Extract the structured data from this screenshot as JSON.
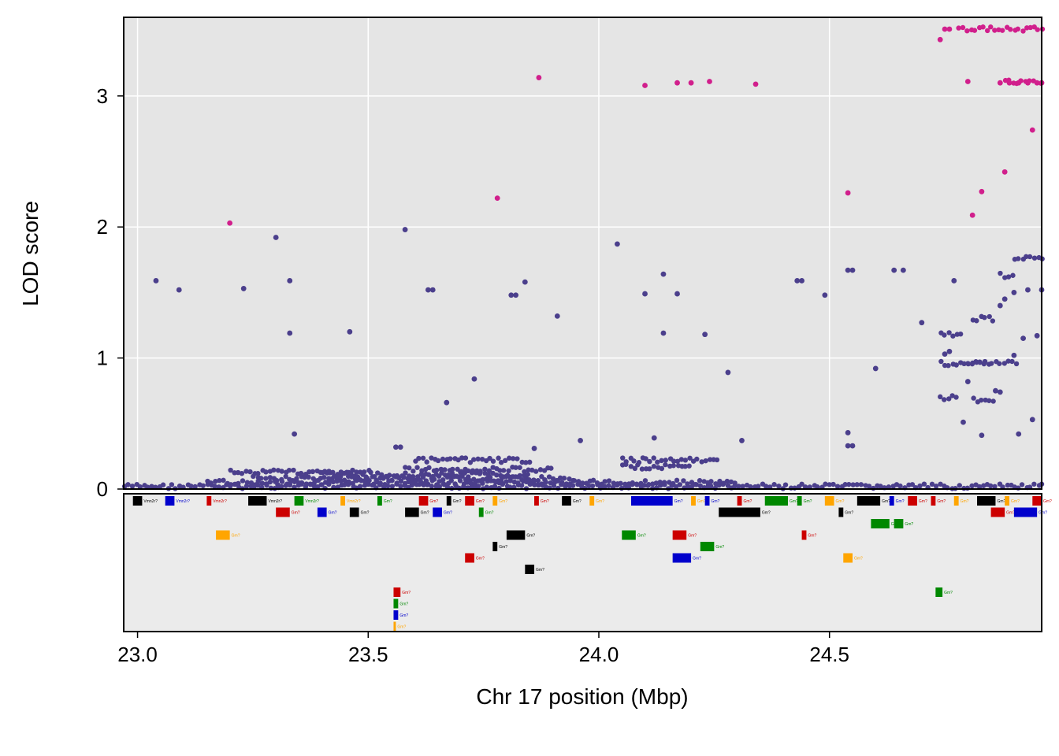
{
  "chart_data": {
    "type": "scatter",
    "title": "",
    "xlabel": "Chr 17 position (Mbp)",
    "ylabel": "LOD score",
    "xlim": [
      22.97,
      24.96
    ],
    "ylim": [
      0,
      3.6
    ],
    "x_ticks": [
      {
        "value": 23.0,
        "label": "23.0"
      },
      {
        "value": 23.5,
        "label": "23.5"
      },
      {
        "value": 24.0,
        "label": "24.0"
      },
      {
        "value": 24.5,
        "label": "24.5"
      }
    ],
    "y_ticks": [
      {
        "value": 0,
        "label": "0"
      },
      {
        "value": 1,
        "label": "1"
      },
      {
        "value": 2,
        "label": "2"
      },
      {
        "value": 3,
        "label": "3"
      }
    ],
    "grid": true,
    "background": "#e5e5e5",
    "gene_track": true,
    "series": [
      {
        "color": "#4b3f8c",
        "points": [
          [
            23.04,
            1.59
          ],
          [
            23.09,
            1.52
          ],
          [
            23.23,
            1.53
          ],
          [
            23.3,
            1.92
          ],
          [
            23.33,
            1.59
          ],
          [
            23.33,
            1.19
          ],
          [
            23.34,
            0.42
          ],
          [
            23.46,
            1.2
          ],
          [
            23.58,
            1.98
          ],
          [
            23.63,
            1.52
          ],
          [
            23.64,
            1.52
          ],
          [
            23.67,
            0.66
          ],
          [
            23.73,
            0.84
          ],
          [
            23.81,
            1.48
          ],
          [
            23.82,
            1.48
          ],
          [
            23.84,
            1.58
          ],
          [
            23.91,
            1.32
          ],
          [
            24.04,
            1.87
          ],
          [
            24.1,
            1.49
          ],
          [
            24.14,
            1.64
          ],
          [
            24.14,
            1.19
          ],
          [
            24.17,
            1.49
          ],
          [
            24.23,
            1.18
          ],
          [
            24.28,
            0.89
          ],
          [
            24.31,
            0.37
          ],
          [
            24.43,
            1.59
          ],
          [
            24.44,
            1.59
          ],
          [
            24.49,
            1.48
          ],
          [
            24.54,
            1.67
          ],
          [
            24.55,
            1.67
          ],
          [
            24.6,
            0.92
          ],
          [
            24.64,
            1.67
          ],
          [
            24.66,
            1.67
          ],
          [
            24.7,
            1.27
          ],
          [
            24.77,
            1.59
          ],
          [
            24.79,
            0.51
          ],
          [
            24.83,
            0.41
          ],
          [
            24.91,
            0.42
          ],
          [
            24.92,
            1.15
          ],
          [
            24.94,
            0.53
          ],
          [
            24.95,
            1.17
          ],
          [
            24.96,
            1.52
          ],
          [
            24.54,
            0.43
          ],
          [
            24.54,
            0.33
          ],
          [
            24.55,
            0.33
          ],
          [
            23.96,
            0.37
          ],
          [
            24.12,
            0.39
          ],
          [
            23.56,
            0.32
          ],
          [
            23.57,
            0.32
          ],
          [
            23.86,
            0.31
          ],
          [
            24.87,
            1.4
          ],
          [
            24.88,
            1.45
          ],
          [
            24.9,
            1.5
          ],
          [
            24.93,
            1.52
          ],
          [
            24.75,
            1.03
          ],
          [
            24.76,
            1.05
          ],
          [
            24.8,
            0.82
          ],
          [
            24.86,
            0.75
          ],
          [
            24.87,
            0.74
          ],
          [
            24.9,
            1.02
          ]
        ],
        "bands": [
          {
            "x_start": 22.97,
            "x_end": 24.96,
            "y": 0.02
          },
          {
            "x_start": 23.15,
            "x_end": 24.3,
            "y": 0.05
          },
          {
            "x_start": 23.25,
            "x_end": 23.95,
            "y": 0.08
          },
          {
            "x_start": 23.4,
            "x_end": 23.85,
            "y": 0.11
          },
          {
            "x_start": 23.58,
            "x_end": 23.9,
            "y": 0.15
          },
          {
            "x_start": 23.6,
            "x_end": 23.85,
            "y": 0.22
          },
          {
            "x_start": 24.05,
            "x_end": 24.26,
            "y": 0.22
          },
          {
            "x_start": 24.05,
            "x_end": 24.2,
            "y": 0.17
          },
          {
            "x_start": 23.2,
            "x_end": 23.5,
            "y": 0.13
          },
          {
            "x_start": 24.74,
            "x_end": 24.91,
            "y": 0.96
          },
          {
            "x_start": 24.74,
            "x_end": 24.79,
            "y": 1.18
          },
          {
            "x_start": 24.74,
            "x_end": 24.78,
            "y": 0.7
          },
          {
            "x_start": 24.8,
            "x_end": 24.84,
            "y": 0.96
          },
          {
            "x_start": 24.81,
            "x_end": 24.86,
            "y": 1.3
          },
          {
            "x_start": 24.87,
            "x_end": 24.9,
            "y": 1.63
          },
          {
            "x_start": 24.9,
            "x_end": 24.96,
            "y": 1.77
          },
          {
            "x_start": 24.81,
            "x_end": 24.86,
            "y": 0.68
          }
        ]
      },
      {
        "color": "#d11f8c",
        "points": [
          [
            23.2,
            2.03
          ],
          [
            23.78,
            2.22
          ],
          [
            23.87,
            3.14
          ],
          [
            24.1,
            3.08
          ],
          [
            24.17,
            3.1
          ],
          [
            24.2,
            3.1
          ],
          [
            24.24,
            3.11
          ],
          [
            24.34,
            3.09
          ],
          [
            24.54,
            2.26
          ],
          [
            24.74,
            3.43
          ],
          [
            24.75,
            3.51
          ],
          [
            24.76,
            3.51
          ],
          [
            24.8,
            3.11
          ],
          [
            24.81,
            2.09
          ],
          [
            24.83,
            2.27
          ],
          [
            24.88,
            2.42
          ],
          [
            24.94,
            2.74
          ],
          [
            24.87,
            3.1
          ],
          [
            24.89,
            3.1
          ],
          [
            24.91,
            3.1
          ],
          [
            24.93,
            3.1
          ],
          [
            24.95,
            3.1
          ],
          [
            24.96,
            3.1
          ]
        ],
        "bands": [
          {
            "x_start": 24.78,
            "x_end": 24.96,
            "y": 3.51
          },
          {
            "x_start": 24.88,
            "x_end": 24.96,
            "y": 3.11
          }
        ]
      }
    ],
    "genes": [
      {
        "start": 22.99,
        "end": 23.01,
        "row": 0,
        "color": "#000000",
        "label": "Vmn2r?"
      },
      {
        "start": 23.06,
        "end": 23.08,
        "row": 0,
        "color": "#0000cc",
        "label": "Vmn2r?"
      },
      {
        "start": 23.15,
        "end": 23.16,
        "row": 0,
        "color": "#cc0000",
        "label": "Vmn2r?"
      },
      {
        "start": 23.24,
        "end": 23.28,
        "row": 0,
        "color": "#000000",
        "label": "Vmn2r?"
      },
      {
        "start": 23.34,
        "end": 23.36,
        "row": 0,
        "color": "#008800",
        "label": "Vmn2r?"
      },
      {
        "start": 23.44,
        "end": 23.45,
        "row": 0,
        "color": "#ffa500",
        "label": "Vmn2r?"
      },
      {
        "start": 23.52,
        "end": 23.53,
        "row": 0,
        "color": "#008800",
        "label": "Gm?"
      },
      {
        "start": 23.61,
        "end": 23.63,
        "row": 0,
        "color": "#cc0000",
        "label": "Gm?"
      },
      {
        "start": 23.67,
        "end": 23.68,
        "row": 0,
        "color": "#000000",
        "label": "Gm?"
      },
      {
        "start": 23.71,
        "end": 23.73,
        "row": 0,
        "color": "#cc0000",
        "label": "Gm?"
      },
      {
        "start": 23.77,
        "end": 23.78,
        "row": 0,
        "color": "#ffa500",
        "label": "Gm?"
      },
      {
        "start": 23.86,
        "end": 23.87,
        "row": 0,
        "color": "#cc0000",
        "label": "Gm?"
      },
      {
        "start": 23.92,
        "end": 23.94,
        "row": 0,
        "color": "#000000",
        "label": "Gm?"
      },
      {
        "start": 23.98,
        "end": 23.99,
        "row": 0,
        "color": "#ffa500",
        "label": "Gm?"
      },
      {
        "start": 24.07,
        "end": 24.16,
        "row": 0,
        "color": "#0000cc",
        "label": "Gm?"
      },
      {
        "start": 24.2,
        "end": 24.21,
        "row": 0,
        "color": "#ffa500",
        "label": "Gm?"
      },
      {
        "start": 24.23,
        "end": 24.24,
        "row": 0,
        "color": "#0000cc",
        "label": "Gm?"
      },
      {
        "start": 24.3,
        "end": 24.31,
        "row": 0,
        "color": "#cc0000",
        "label": "Gm?"
      },
      {
        "start": 24.36,
        "end": 24.41,
        "row": 0,
        "color": "#008800",
        "label": "Gm?"
      },
      {
        "start": 24.43,
        "end": 24.44,
        "row": 0,
        "color": "#008800",
        "label": "Gm?"
      },
      {
        "start": 24.49,
        "end": 24.51,
        "row": 0,
        "color": "#ffa500",
        "label": "Gm?"
      },
      {
        "start": 24.56,
        "end": 24.61,
        "row": 0,
        "color": "#000000",
        "label": "Gm?"
      },
      {
        "start": 24.63,
        "end": 24.64,
        "row": 0,
        "color": "#0000cc",
        "label": "Gm?"
      },
      {
        "start": 24.67,
        "end": 24.69,
        "row": 0,
        "color": "#cc0000",
        "label": "Gm?"
      },
      {
        "start": 24.72,
        "end": 24.73,
        "row": 0,
        "color": "#cc0000",
        "label": "Gm?"
      },
      {
        "start": 24.77,
        "end": 24.78,
        "row": 0,
        "color": "#ffa500",
        "label": "Gm?"
      },
      {
        "start": 24.82,
        "end": 24.86,
        "row": 0,
        "color": "#000000",
        "label": "Gm?"
      },
      {
        "start": 24.88,
        "end": 24.89,
        "row": 0,
        "color": "#ffa500",
        "label": "Gm?"
      },
      {
        "start": 24.94,
        "end": 24.96,
        "row": 0,
        "color": "#cc0000",
        "label": "Gm?"
      },
      {
        "start": 23.3,
        "end": 23.33,
        "row": 1,
        "color": "#cc0000",
        "label": "Gm?"
      },
      {
        "start": 23.39,
        "end": 23.41,
        "row": 1,
        "color": "#0000cc",
        "label": "Gm?"
      },
      {
        "start": 23.46,
        "end": 23.48,
        "row": 1,
        "color": "#000000",
        "label": "Gm?"
      },
      {
        "start": 23.58,
        "end": 23.61,
        "row": 1,
        "color": "#000000",
        "label": "Gm?"
      },
      {
        "start": 23.64,
        "end": 23.66,
        "row": 1,
        "color": "#0000cc",
        "label": "Gm?"
      },
      {
        "start": 23.74,
        "end": 23.75,
        "row": 1,
        "color": "#008800",
        "label": "Gm?"
      },
      {
        "start": 24.26,
        "end": 24.35,
        "row": 1,
        "color": "#000000",
        "label": "Gm?"
      },
      {
        "start": 24.52,
        "end": 24.53,
        "row": 1,
        "color": "#000000",
        "label": "Gm?"
      },
      {
        "start": 24.85,
        "end": 24.88,
        "row": 1,
        "color": "#cc0000",
        "label": "Gm?"
      },
      {
        "start": 24.9,
        "end": 24.95,
        "row": 1,
        "color": "#0000cc",
        "label": "Gm?"
      },
      {
        "start": 24.59,
        "end": 24.63,
        "row": 2,
        "color": "#008800",
        "label": "Gm?"
      },
      {
        "start": 24.64,
        "end": 24.66,
        "row": 2,
        "color": "#008800",
        "label": "Gm?"
      },
      {
        "start": 23.17,
        "end": 23.2,
        "row": 3,
        "color": "#ffa500",
        "label": "Gm?"
      },
      {
        "start": 23.8,
        "end": 23.84,
        "row": 3,
        "color": "#000000",
        "label": "Gm?"
      },
      {
        "start": 24.05,
        "end": 24.08,
        "row": 3,
        "color": "#008800",
        "label": "Gm?"
      },
      {
        "start": 24.16,
        "end": 24.19,
        "row": 3,
        "color": "#cc0000",
        "label": "Gm?"
      },
      {
        "start": 24.44,
        "end": 24.45,
        "row": 3,
        "color": "#cc0000",
        "label": "Gm?"
      },
      {
        "start": 23.77,
        "end": 23.78,
        "row": 4,
        "color": "#000000",
        "label": "Gm?"
      },
      {
        "start": 24.22,
        "end": 24.25,
        "row": 4,
        "color": "#008800",
        "label": "Gm?"
      },
      {
        "start": 24.16,
        "end": 24.2,
        "row": 5,
        "color": "#0000cc",
        "label": "Gm?"
      },
      {
        "start": 23.71,
        "end": 23.73,
        "row": 5,
        "color": "#cc0000",
        "label": "Gm?"
      },
      {
        "start": 24.53,
        "end": 24.55,
        "row": 5,
        "color": "#ffa500",
        "label": "Gm?"
      },
      {
        "start": 23.84,
        "end": 23.86,
        "row": 6,
        "color": "#000000",
        "label": "Gm?"
      },
      {
        "start": 23.555,
        "end": 23.57,
        "row": 8,
        "color": "#cc0000",
        "label": "Gm?"
      },
      {
        "start": 23.555,
        "end": 23.565,
        "row": 9,
        "color": "#008800",
        "label": "Gm?"
      },
      {
        "start": 23.555,
        "end": 23.565,
        "row": 10,
        "color": "#0000cc",
        "label": "Gm?"
      },
      {
        "start": 23.555,
        "end": 23.56,
        "row": 11,
        "color": "#ffa500",
        "label": "Gm?"
      },
      {
        "start": 24.73,
        "end": 24.745,
        "row": 8,
        "color": "#008800",
        "label": "Gm?"
      }
    ]
  }
}
